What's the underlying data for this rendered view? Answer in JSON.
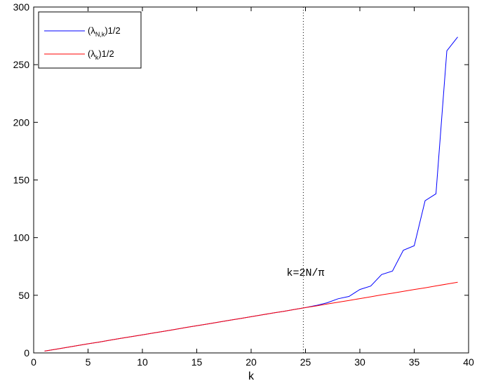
{
  "chart_data": {
    "type": "line",
    "title": "",
    "xlabel": "k",
    "ylabel": "",
    "xlim": [
      0,
      40
    ],
    "ylim": [
      0,
      300
    ],
    "xticks": [
      0,
      5,
      10,
      15,
      20,
      25,
      30,
      35,
      40
    ],
    "yticks": [
      0,
      50,
      100,
      150,
      200,
      250,
      300
    ],
    "grid": false,
    "legend_position": "top-left",
    "legend": [
      {
        "base": "(λ",
        "sub": "N,k",
        "sup": ")1/2",
        "color": "#0000ff"
      },
      {
        "base": "(λ",
        "sub": "k",
        "sup": ")1/2",
        "color": "#ff0000"
      }
    ],
    "annotation": {
      "text": "k=2N/π",
      "x": 25
    },
    "vline_x": 24.8,
    "series": [
      {
        "color": "#0000ff",
        "x": [
          1,
          2,
          3,
          4,
          5,
          6,
          7,
          8,
          9,
          10,
          11,
          12,
          13,
          14,
          15,
          16,
          17,
          18,
          19,
          20,
          21,
          22,
          23,
          24,
          25,
          26,
          27,
          28,
          29,
          30,
          31,
          32,
          33,
          34,
          35,
          36,
          37,
          38,
          39
        ],
        "y": [
          1.6,
          3.1,
          4.7,
          6.3,
          7.9,
          9.4,
          11,
          12.6,
          14.1,
          15.7,
          17.3,
          18.8,
          20.4,
          22,
          23.6,
          25.1,
          26.7,
          28.3,
          29.8,
          31.4,
          33,
          34.6,
          36.1,
          37.7,
          39.3,
          41.2,
          43.5,
          47,
          49,
          55,
          58,
          68,
          71,
          89,
          93,
          132,
          138,
          262,
          274
        ]
      },
      {
        "color": "#ff0000",
        "x": [
          1,
          2,
          3,
          4,
          5,
          6,
          7,
          8,
          9,
          10,
          11,
          12,
          13,
          14,
          15,
          16,
          17,
          18,
          19,
          20,
          21,
          22,
          23,
          24,
          25,
          26,
          27,
          28,
          29,
          30,
          31,
          32,
          33,
          34,
          35,
          36,
          37,
          38,
          39
        ],
        "y": [
          1.6,
          3.1,
          4.7,
          6.3,
          7.9,
          9.4,
          11,
          12.6,
          14.1,
          15.7,
          17.3,
          18.8,
          20.4,
          22,
          23.6,
          25.1,
          26.7,
          28.3,
          29.8,
          31.4,
          33,
          34.6,
          36.1,
          37.7,
          39.3,
          40.8,
          42.4,
          44,
          45.5,
          47.1,
          48.7,
          50.3,
          51.8,
          53.4,
          55,
          56.5,
          58.1,
          59.7,
          61.3
        ]
      }
    ]
  }
}
